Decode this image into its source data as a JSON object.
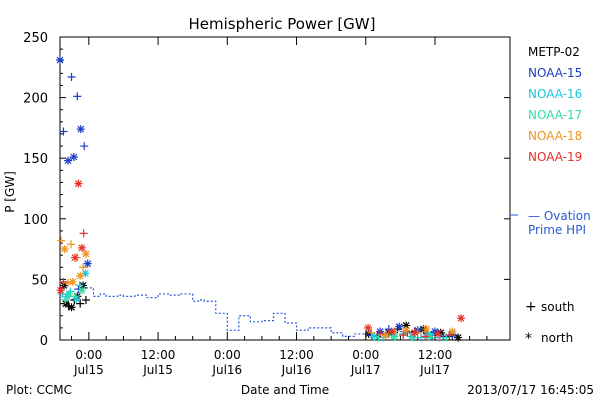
{
  "chart_data": {
    "type": "scatter",
    "title": "Hemispheric Power [GW]",
    "ylabel": "P [GW]",
    "xlabel": "Date and Time",
    "ylim": [
      0,
      250
    ],
    "yticks": [
      0,
      50,
      100,
      150,
      200,
      250
    ],
    "xlim_hours": [
      -5,
      73
    ],
    "xticks": [
      {
        "hour": 0,
        "time": "0:00",
        "date": "Jul15"
      },
      {
        "hour": 12,
        "time": "12:00",
        "date": "Jul15"
      },
      {
        "hour": 24,
        "time": "0:00",
        "date": "Jul16"
      },
      {
        "hour": 36,
        "time": "12:00",
        "date": "Jul16"
      },
      {
        "hour": 48,
        "time": "0:00",
        "date": "Jul17"
      },
      {
        "hour": 60,
        "time": "12:00",
        "date": "Jul17"
      }
    ],
    "legend": [
      {
        "name": "METP-02",
        "color": "#000000"
      },
      {
        "name": "NOAA-15",
        "color": "#1c3cc8"
      },
      {
        "name": "NOAA-16",
        "color": "#18c8e0"
      },
      {
        "name": "NOAA-17",
        "color": "#30e0a0"
      },
      {
        "name": "NOAA-18",
        "color": "#f09420"
      },
      {
        "name": "NOAA-19",
        "color": "#e8302a"
      }
    ],
    "ovation_label": [
      "— Ovation",
      "Prime HPI"
    ],
    "ovation_color": "#2a5ad8",
    "marker_key": [
      {
        "symbol": "+",
        "label": "south"
      },
      {
        "symbol": "*",
        "label": "north"
      }
    ],
    "ovation": [
      [
        -0.5,
        43
      ],
      [
        0.8,
        36
      ],
      [
        2,
        38
      ],
      [
        3,
        36
      ],
      [
        4,
        36
      ],
      [
        5,
        37
      ],
      [
        6,
        36
      ],
      [
        8,
        37
      ],
      [
        10,
        35
      ],
      [
        12,
        38
      ],
      [
        14,
        37
      ],
      [
        16,
        38
      ],
      [
        18,
        32
      ],
      [
        19,
        33
      ],
      [
        20,
        32
      ],
      [
        22,
        22
      ],
      [
        24,
        8
      ],
      [
        26,
        20
      ],
      [
        28,
        15
      ],
      [
        30,
        16
      ],
      [
        32,
        22
      ],
      [
        34,
        14
      ],
      [
        36,
        8
      ],
      [
        38,
        10
      ],
      [
        40,
        10
      ],
      [
        42,
        6
      ],
      [
        44,
        3
      ],
      [
        46,
        5
      ],
      [
        48,
        6
      ],
      [
        50,
        6
      ],
      [
        52,
        7
      ],
      [
        54,
        7
      ],
      [
        56,
        7
      ],
      [
        58,
        6
      ],
      [
        60,
        5
      ],
      [
        62,
        4
      ],
      [
        64,
        3
      ]
    ],
    "series": [
      {
        "name": "METP-02",
        "color": "#000000",
        "points": [
          [
            -4.3,
            45,
            "n"
          ],
          [
            -4,
            30,
            "n"
          ],
          [
            -3.5,
            28,
            "s"
          ],
          [
            -3,
            27,
            "n"
          ],
          [
            -2.5,
            33,
            "s"
          ],
          [
            -2,
            36,
            "n"
          ],
          [
            -1.5,
            30,
            "s"
          ],
          [
            -1,
            45,
            "n"
          ],
          [
            -0.5,
            33,
            "s"
          ],
          [
            48.5,
            5,
            "n"
          ],
          [
            50,
            3,
            "s"
          ],
          [
            52,
            6,
            "n"
          ],
          [
            53.5,
            9,
            "s"
          ],
          [
            55,
            12,
            "n"
          ],
          [
            56.5,
            7,
            "s"
          ],
          [
            58,
            9,
            "n"
          ],
          [
            59.5,
            4,
            "s"
          ],
          [
            61,
            6,
            "n"
          ],
          [
            62.5,
            3,
            "s"
          ],
          [
            64,
            2,
            "n"
          ]
        ]
      },
      {
        "name": "NOAA-15",
        "color": "#1c3cc8",
        "points": [
          [
            -5,
            231,
            "n"
          ],
          [
            -4.4,
            172,
            "s"
          ],
          [
            -3.6,
            148,
            "n"
          ],
          [
            -3,
            217,
            "s"
          ],
          [
            -2.6,
            151,
            "n"
          ],
          [
            -2,
            201,
            "s"
          ],
          [
            -1.4,
            174,
            "n"
          ],
          [
            -0.8,
            160,
            "s"
          ],
          [
            -0.2,
            63,
            "n"
          ],
          [
            -1.8,
            42,
            "s"
          ],
          [
            49,
            4,
            "s"
          ],
          [
            50.5,
            7,
            "n"
          ],
          [
            52,
            9,
            "s"
          ],
          [
            53.8,
            11,
            "n"
          ],
          [
            55.2,
            6,
            "s"
          ],
          [
            57,
            8,
            "n"
          ],
          [
            58.6,
            5,
            "s"
          ],
          [
            60,
            7,
            "n"
          ],
          [
            61.5,
            3,
            "s"
          ],
          [
            63,
            5,
            "n"
          ]
        ]
      },
      {
        "name": "NOAA-16",
        "color": "#18c8e0",
        "points": [
          [
            -4.6,
            38,
            "s"
          ],
          [
            -3.8,
            36,
            "n"
          ],
          [
            -3.2,
            40,
            "s"
          ],
          [
            -2.2,
            34,
            "n"
          ],
          [
            -1.6,
            45,
            "s"
          ],
          [
            -0.6,
            55,
            "n"
          ],
          [
            49.5,
            3,
            "n"
          ],
          [
            51,
            2,
            "s"
          ],
          [
            52.8,
            4,
            "n"
          ],
          [
            54.5,
            5,
            "s"
          ],
          [
            56,
            3,
            "n"
          ],
          [
            57.6,
            2,
            "s"
          ],
          [
            59.2,
            4,
            "n"
          ],
          [
            60.8,
            2,
            "s"
          ]
        ]
      },
      {
        "name": "NOAA-17",
        "color": "#30e0a0",
        "points": [
          [
            -4.1,
            33,
            "s"
          ],
          [
            -3.4,
            38,
            "n"
          ],
          [
            -2.4,
            36,
            "s"
          ],
          [
            -1.2,
            41,
            "n"
          ],
          [
            50.2,
            2,
            "s"
          ],
          [
            53,
            3,
            "n"
          ],
          [
            56.2,
            2,
            "s"
          ],
          [
            59,
            3,
            "n"
          ],
          [
            62,
            2,
            "s"
          ]
        ]
      },
      {
        "name": "NOAA-18",
        "color": "#f09420",
        "points": [
          [
            -4.8,
            82,
            "s"
          ],
          [
            -4.2,
            75,
            "n"
          ],
          [
            -3.6,
            47,
            "s"
          ],
          [
            -3.1,
            79,
            "s"
          ],
          [
            -2.8,
            48,
            "n"
          ],
          [
            -2.1,
            68,
            "s"
          ],
          [
            -1.5,
            53,
            "n"
          ],
          [
            -1,
            60,
            "s"
          ],
          [
            -0.5,
            71,
            "n"
          ],
          [
            49,
            6,
            "s"
          ],
          [
            51.5,
            4,
            "n"
          ],
          [
            53,
            7,
            "s"
          ],
          [
            55,
            8,
            "n"
          ],
          [
            57,
            6,
            "s"
          ],
          [
            58.5,
            9,
            "n"
          ],
          [
            60.5,
            5,
            "s"
          ],
          [
            63,
            7,
            "n"
          ]
        ]
      },
      {
        "name": "NOAA-19",
        "color": "#e8302a",
        "points": [
          [
            -4.9,
            41,
            "n"
          ],
          [
            -4.4,
            48,
            "s"
          ],
          [
            -2.4,
            68,
            "n"
          ],
          [
            -1.8,
            129,
            "n"
          ],
          [
            -1.2,
            76,
            "n"
          ],
          [
            -0.9,
            88,
            "s"
          ],
          [
            48.4,
            10,
            "n"
          ],
          [
            50.5,
            5,
            "s"
          ],
          [
            52.5,
            7,
            "n"
          ],
          [
            54.5,
            4,
            "s"
          ],
          [
            56.5,
            6,
            "n"
          ],
          [
            58.3,
            3,
            "s"
          ],
          [
            60.5,
            5,
            "n"
          ],
          [
            62.5,
            4,
            "s"
          ],
          [
            64.5,
            18,
            "n"
          ]
        ]
      }
    ]
  },
  "footer": {
    "plot_credit": "Plot: CCMC",
    "timestamp": "2013/07/17 16:45:05"
  }
}
